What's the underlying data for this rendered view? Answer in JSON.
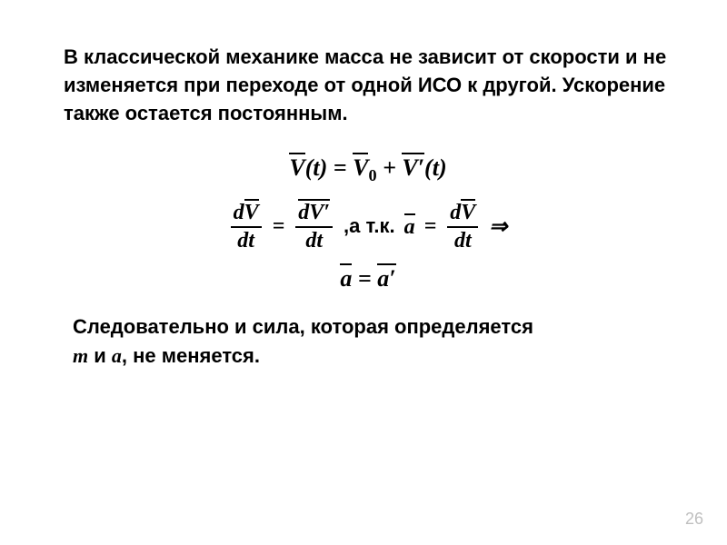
{
  "slide": {
    "intro": "В классической механике масса не зависит от скорости и не изменяется при переходе от одной ИСО к другой. Ускорение также остается постоянным.",
    "eq": {
      "V": "V",
      "t": "t",
      "V0": "V",
      "zero": "0",
      "Vprime": "V′",
      "dV": "dV",
      "dVprime": "dV′",
      "dt": "dt",
      "a": "a",
      "aprime": "a′",
      "mid_text": ",а т.к.",
      "implies": "⇒",
      "equals": "=",
      "plus": "+",
      "open": "(",
      "close": ")"
    },
    "conclusion_pre": "Следовательно и сила, которая определяется",
    "conclusion_m": "m",
    "conclusion_and": " и ",
    "conclusion_a": "a",
    "conclusion_post": ", не меняется.",
    "page_number": "26",
    "colors": {
      "background": "#ffffff",
      "text": "#000000",
      "page_num": "#bfbfbf"
    },
    "fonts": {
      "body_size": 22,
      "body_weight": 700,
      "eq_size": 26,
      "eq_family": "serif-italic",
      "page_num_size": 18
    }
  }
}
